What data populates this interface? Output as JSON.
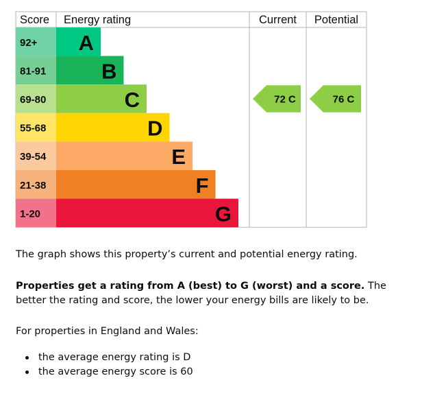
{
  "chart_data": {
    "type": "table",
    "headers": {
      "score": "Score",
      "rating": "Energy rating",
      "current": "Current",
      "potential": "Potential"
    },
    "bands": [
      {
        "letter": "A",
        "range": "92+",
        "color": "#00c781",
        "score_color": "#6fd3a7"
      },
      {
        "letter": "B",
        "range": "81-91",
        "color": "#19b459",
        "score_color": "#76cf94"
      },
      {
        "letter": "C",
        "range": "69-80",
        "color": "#8dce46",
        "score_color": "#b9e08e"
      },
      {
        "letter": "D",
        "range": "55-68",
        "color": "#ffd500",
        "score_color": "#ffe466"
      },
      {
        "letter": "E",
        "range": "39-54",
        "color": "#fcaa65",
        "score_color": "#fdcaa0"
      },
      {
        "letter": "F",
        "range": "21-38",
        "color": "#ef8023",
        "score_color": "#f5b27c"
      },
      {
        "letter": "G",
        "range": "1-20",
        "color": "#e9153b",
        "score_color": "#f27389"
      }
    ],
    "current": {
      "score": 72,
      "band": "C",
      "label": "72 C",
      "color": "#8dce46"
    },
    "potential": {
      "score": 76,
      "band": "C",
      "label": "76 C",
      "color": "#8dce46"
    }
  },
  "text": {
    "intro": "The graph shows this property’s current and potential energy rating.",
    "rating_bold": "Properties get a rating from A (best) to G (worst) and a score.",
    "rating_rest": " The better the rating and score, the lower your energy bills are likely to be.",
    "region": "For properties in England and Wales:",
    "bullets": [
      "the average energy rating is D",
      "the average energy score is 60"
    ]
  }
}
